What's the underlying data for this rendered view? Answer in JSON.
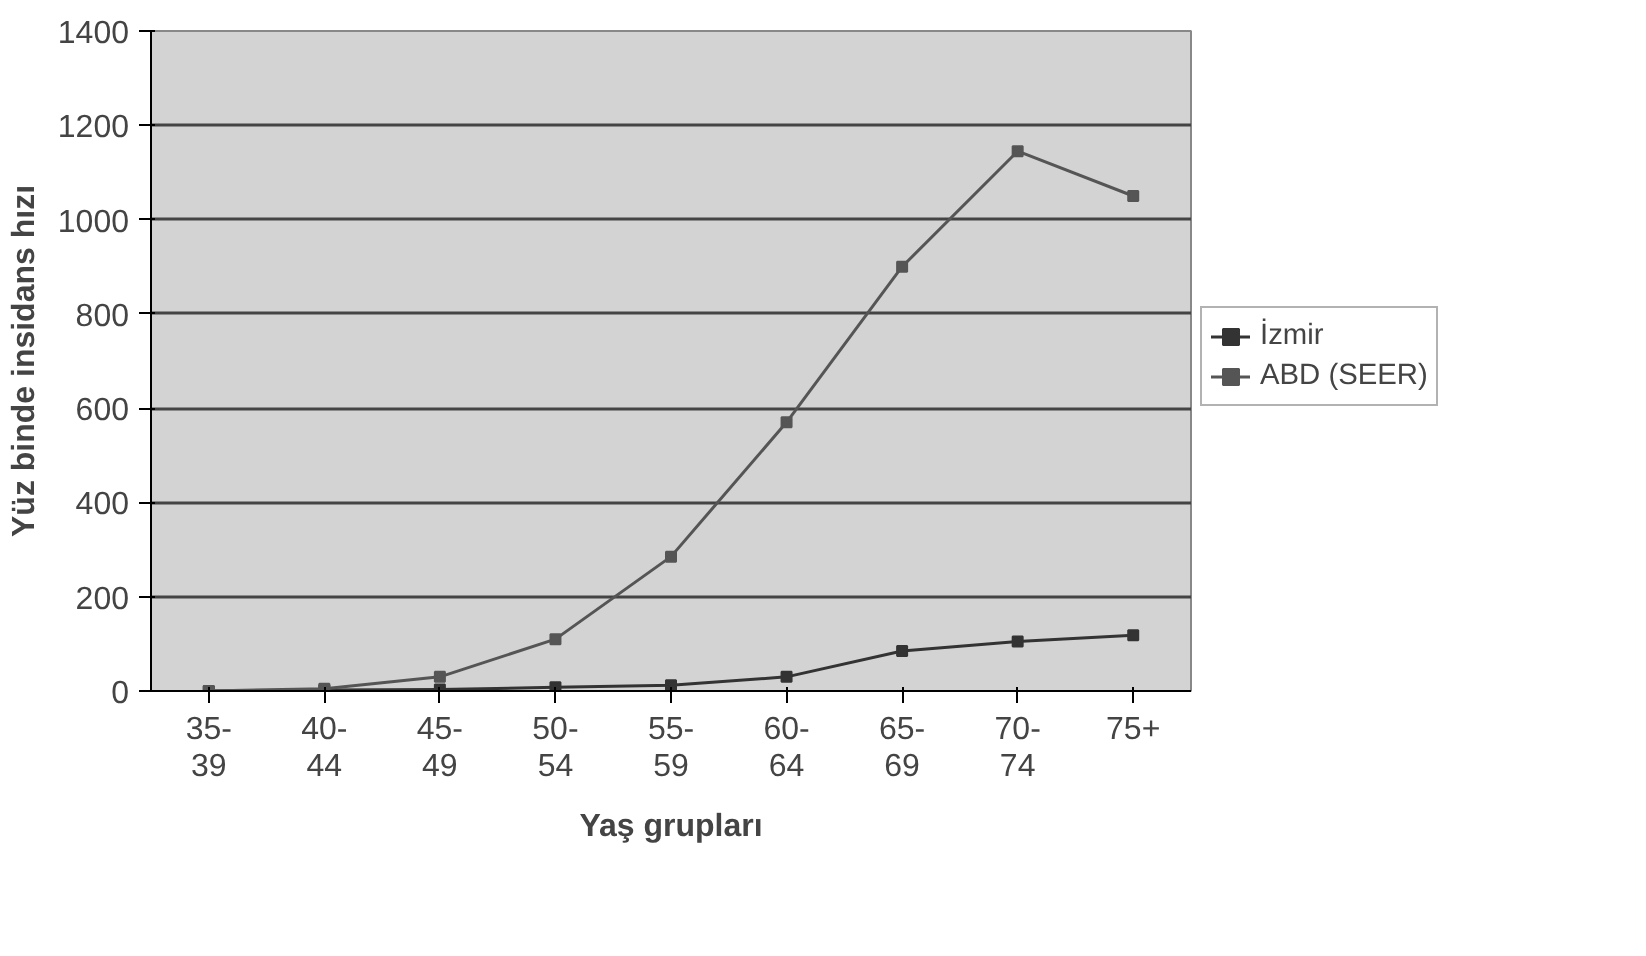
{
  "chart_data": {
    "type": "line",
    "xlabel": "Yaş grupları",
    "ylabel": "Yüz binde insidans hızı",
    "categories": [
      "35-39",
      "40-44",
      "45-49",
      "50-54",
      "55-59",
      "60-64",
      "65-69",
      "70-74",
      "75+"
    ],
    "series": [
      {
        "name": "İzmir",
        "color": "#333333",
        "values": [
          0,
          2,
          3,
          8,
          12,
          30,
          85,
          105,
          118
        ]
      },
      {
        "name": "ABD (SEER)",
        "color": "#555555",
        "values": [
          0,
          5,
          30,
          110,
          285,
          570,
          900,
          1145,
          1050
        ]
      }
    ],
    "ylim": [
      0,
      1400
    ],
    "yticks": [
      0,
      200,
      400,
      600,
      800,
      1000,
      1200,
      1400
    ],
    "grid": "y",
    "legend": "right",
    "marker": "square",
    "line_style": "solid"
  }
}
